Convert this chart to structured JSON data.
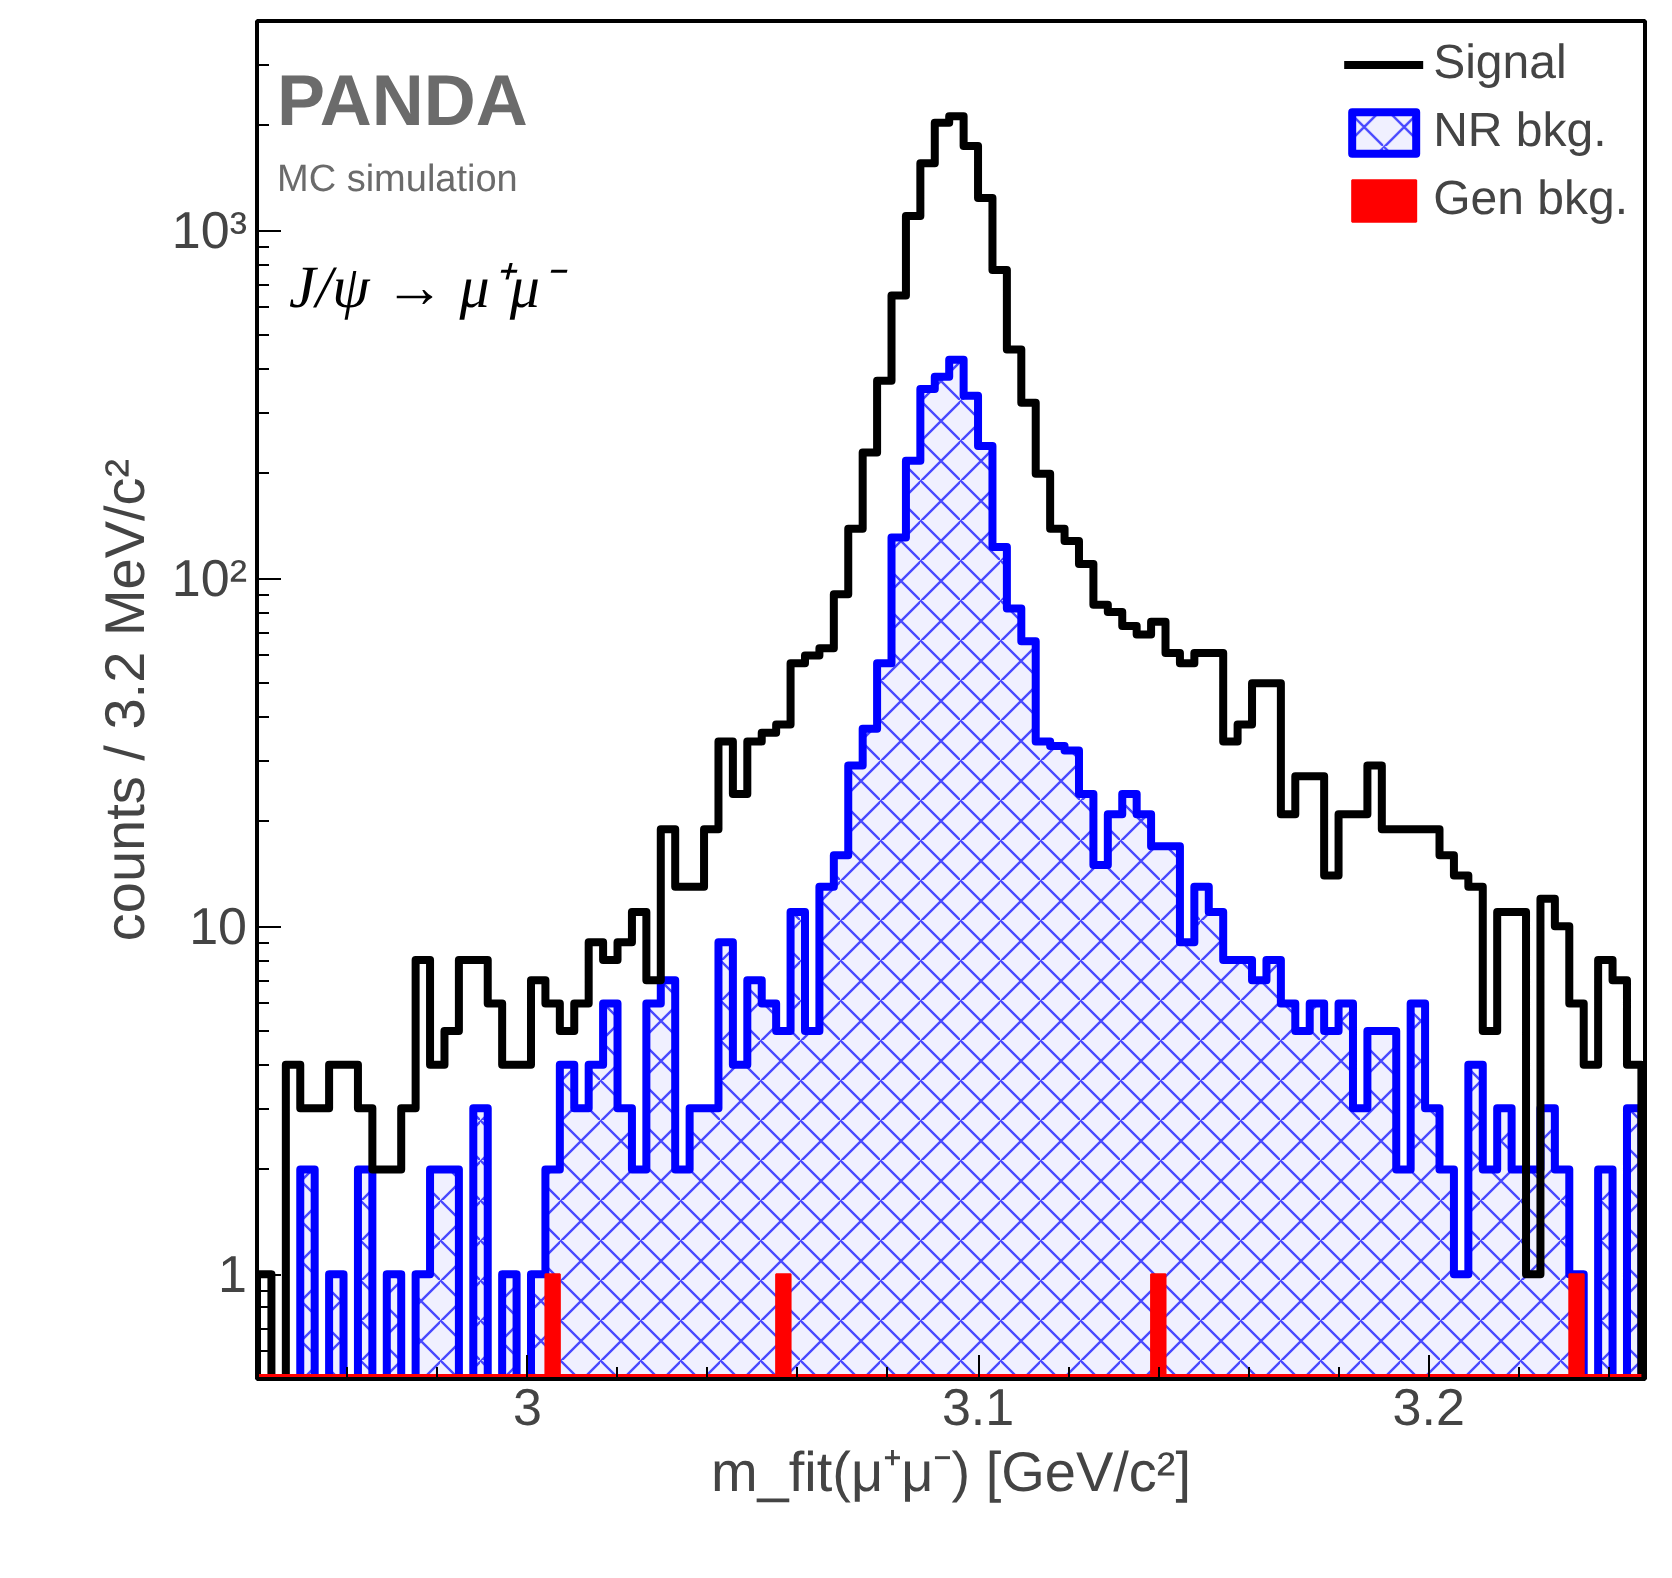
{
  "chart_data": {
    "type": "histogram",
    "xlabel": "m_fit(μ⁺μ⁻) [GeV/c²]",
    "ylabel": "counts / 3.2 MeV/c²",
    "annotations": [
      "PANDA",
      "MC simulation",
      "J/ψ → μ⁺μ⁻"
    ],
    "bins": [
      2.94,
      2.9432,
      2.9464,
      2.9496,
      2.9528,
      2.956,
      2.9592,
      2.9624,
      2.9656,
      2.9688,
      2.972,
      2.9752,
      2.9784,
      2.9816,
      2.9848,
      2.988,
      2.9912,
      2.9944,
      2.9976,
      3.0008,
      3.004,
      3.0072,
      3.0104,
      3.0136,
      3.0168,
      3.02,
      3.0232,
      3.0264,
      3.0296,
      3.0328,
      3.036,
      3.0392,
      3.0424,
      3.0456,
      3.0488,
      3.052,
      3.0552,
      3.0584,
      3.0616,
      3.0648,
      3.068,
      3.0712,
      3.0744,
      3.0776,
      3.0808,
      3.084,
      3.0872,
      3.0904,
      3.0936,
      3.0968,
      3.1,
      3.1032,
      3.1064,
      3.1096,
      3.1128,
      3.116,
      3.1192,
      3.1224,
      3.1256,
      3.1288,
      3.132,
      3.1352,
      3.1384,
      3.1416,
      3.1448,
      3.148,
      3.1512,
      3.1544,
      3.1576,
      3.1608,
      3.164,
      3.1672,
      3.1704,
      3.1736,
      3.1768,
      3.18,
      3.1832,
      3.1864,
      3.1896,
      3.1928,
      3.196,
      3.1992,
      3.2024,
      3.2056,
      3.2088,
      3.212,
      3.2152,
      3.2184,
      3.2216,
      3.2248,
      3.228,
      3.2312,
      3.2344,
      3.2376,
      3.2408,
      3.244,
      3.2472
    ],
    "series": [
      {
        "name": "Signal",
        "color": "#000000",
        "values": [
          1,
          null,
          4,
          3,
          3,
          4,
          4,
          3,
          2,
          2,
          3,
          8,
          4,
          5,
          8,
          8,
          6,
          4,
          4,
          7,
          6,
          5,
          6,
          9,
          8,
          9,
          11,
          7,
          19,
          13,
          13,
          19,
          34,
          24,
          34,
          36,
          38,
          57,
          60,
          63,
          90,
          139,
          230,
          370,
          650,
          1100,
          1560,
          2040,
          2130,
          1750,
          1240,
          770,
          455,
          320,
          200,
          139,
          128,
          110,
          84,
          80,
          73,
          69,
          75,
          61,
          57,
          61,
          61,
          34,
          38,
          50,
          50,
          21,
          27,
          27,
          14,
          21,
          21,
          29,
          19,
          19,
          19,
          19,
          16,
          14,
          13,
          5,
          11,
          11,
          1,
          12,
          10,
          6,
          4,
          8,
          7,
          4
        ]
      },
      {
        "name": "NR bkg.",
        "color": "#0000ff",
        "values": [
          null,
          null,
          null,
          2,
          null,
          1,
          null,
          2,
          null,
          1,
          null,
          1,
          2,
          2,
          null,
          3,
          null,
          1,
          null,
          1,
          2,
          4,
          3,
          4,
          6,
          3,
          2,
          6,
          7,
          2,
          3,
          3,
          9,
          4,
          7,
          6,
          5,
          11,
          5,
          13,
          16,
          29,
          37,
          57,
          131,
          218,
          350,
          380,
          425,
          335,
          240,
          123,
          82,
          66,
          34,
          33,
          32,
          24,
          15,
          21,
          24,
          21,
          17,
          17,
          9,
          13,
          11,
          8,
          8,
          7,
          8,
          6,
          5,
          6,
          5,
          6,
          3,
          5,
          5,
          2,
          6,
          3,
          2,
          1,
          4,
          2,
          3,
          2,
          2,
          3,
          2,
          1,
          null,
          2,
          null,
          3
        ]
      },
      {
        "name": "Gen bkg.",
        "color": "#ff0000",
        "values": [
          null,
          null,
          null,
          null,
          null,
          null,
          null,
          null,
          null,
          null,
          null,
          null,
          null,
          null,
          null,
          null,
          null,
          null,
          null,
          null,
          1,
          null,
          null,
          null,
          null,
          null,
          null,
          null,
          null,
          null,
          null,
          null,
          null,
          null,
          null,
          null,
          1,
          null,
          null,
          null,
          null,
          null,
          null,
          null,
          null,
          null,
          null,
          null,
          null,
          null,
          null,
          null,
          null,
          null,
          null,
          null,
          null,
          null,
          null,
          null,
          null,
          null,
          1,
          null,
          null,
          null,
          null,
          null,
          null,
          null,
          null,
          null,
          null,
          null,
          null,
          null,
          null,
          null,
          null,
          null,
          null,
          null,
          null,
          null,
          null,
          null,
          null,
          null,
          null,
          null,
          null,
          1,
          null,
          null,
          null,
          null
        ]
      }
    ],
    "xlim": [
      2.94,
      3.248
    ],
    "ylim": [
      0.5,
      4000
    ],
    "xticks": [
      3,
      3.1,
      3.2
    ],
    "yticks": [
      1,
      10,
      {
        "value": 100,
        "label": "10²"
      },
      {
        "value": 1000,
        "label": "10³"
      }
    ],
    "log": "y",
    "grid": false,
    "legend": "top right"
  }
}
